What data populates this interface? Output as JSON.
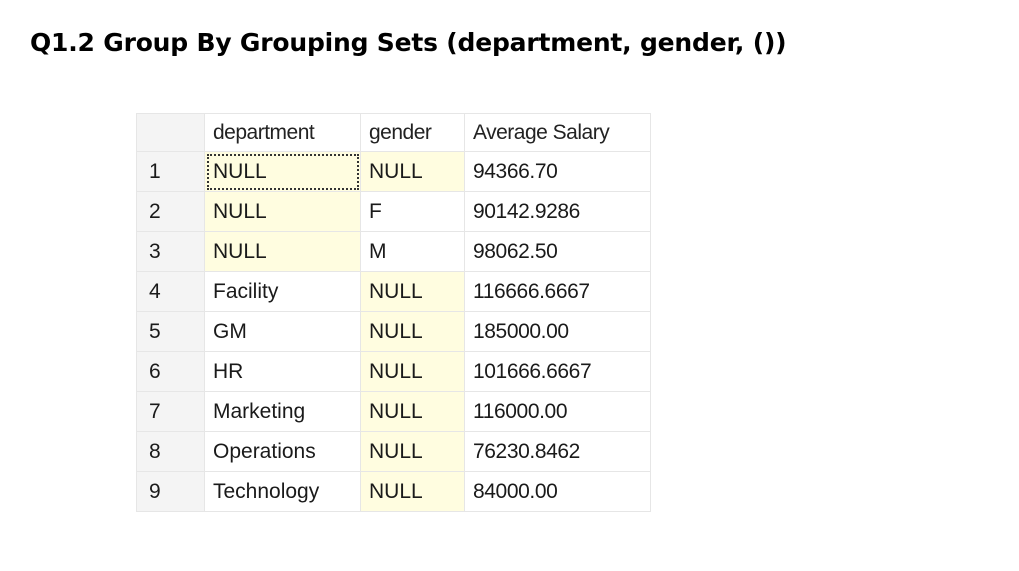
{
  "slide": {
    "title": "Q1.2 Group By Grouping Sets (department, gender, ())"
  },
  "grid": {
    "columns": [
      "department",
      "gender",
      "Average Salary"
    ],
    "rows": [
      {
        "num": "1",
        "department": "NULL",
        "gender": "NULL",
        "avg": "94366.70"
      },
      {
        "num": "2",
        "department": "NULL",
        "gender": "F",
        "avg": "90142.9286"
      },
      {
        "num": "3",
        "department": "NULL",
        "gender": "M",
        "avg": "98062.50"
      },
      {
        "num": "4",
        "department": "Facility",
        "gender": "NULL",
        "avg": "116666.6667"
      },
      {
        "num": "5",
        "department": "GM",
        "gender": "NULL",
        "avg": "185000.00"
      },
      {
        "num": "6",
        "department": "HR",
        "gender": "NULL",
        "avg": "101666.6667"
      },
      {
        "num": "7",
        "department": "Marketing",
        "gender": "NULL",
        "avg": "116000.00"
      },
      {
        "num": "8",
        "department": "Operations",
        "gender": "NULL",
        "avg": "76230.8462"
      },
      {
        "num": "9",
        "department": "Technology",
        "gender": "NULL",
        "avg": "84000.00"
      }
    ],
    "null_highlight_color": "#fffde0"
  }
}
